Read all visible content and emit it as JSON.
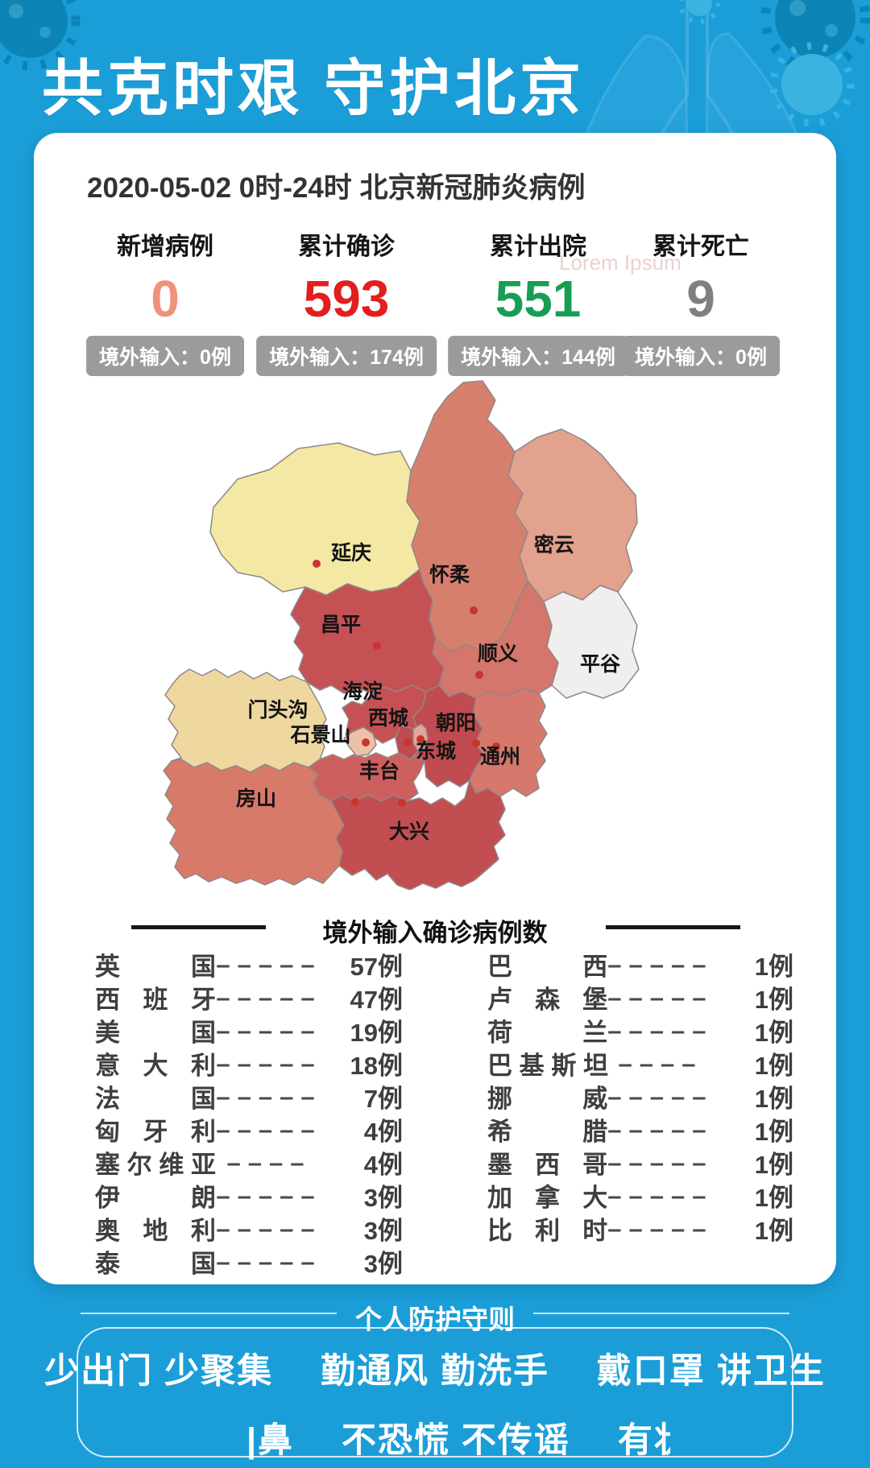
{
  "page": {
    "bg_color": "#1b9ed8",
    "accent_red": "#e31e1e",
    "accent_green": "#189e54"
  },
  "header": {
    "title": "共克时艰 守护北京"
  },
  "report": {
    "date_line": "2020-05-02  0时-24时  北京新冠肺炎病例",
    "watermark": "Lorem Ipsum",
    "stats": [
      {
        "label": "新增病例",
        "value": "0",
        "color": "#f0917c",
        "badge": "境外输入：0例"
      },
      {
        "label": "累计确诊",
        "value": "593",
        "color": "#e31e1e",
        "badge": "境外输入：174例"
      },
      {
        "label": "累计出院",
        "value": "551",
        "color": "#189e54",
        "badge": "境外输入：144例"
      },
      {
        "label": "累计死亡",
        "value": "9",
        "color": "#808080",
        "badge": "境外输入：0例"
      }
    ],
    "map": {
      "dot_color": "#c8342f",
      "border_color": "#8e8888",
      "districts": [
        {
          "id": "yanqing",
          "name": "延庆",
          "color": "#f3e9a4",
          "label": [
            261,
            230
          ],
          "dot": [
            218,
            235
          ]
        },
        {
          "id": "huairou",
          "name": "怀柔",
          "color": "#d77f6d",
          "label": [
            383,
            257
          ],
          "dot": [
            413,
            293
          ]
        },
        {
          "id": "miyun",
          "name": "密云",
          "color": "#e3a28d",
          "label": [
            513,
            220
          ],
          "dot": null
        },
        {
          "id": "pinggu",
          "name": "平谷",
          "color": "#f0efee",
          "label": [
            570,
            368
          ],
          "dot": null
        },
        {
          "id": "changping",
          "name": "昌平",
          "color": "#c65154",
          "label": [
            248,
            319
          ],
          "dot": [
            293,
            337
          ]
        },
        {
          "id": "shunyi",
          "name": "顺义",
          "color": "#d4766b",
          "label": [
            443,
            355
          ],
          "dot": [
            420,
            373
          ]
        },
        {
          "id": "mentougou",
          "name": "门头沟",
          "color": "#eed8a0",
          "label": [
            170,
            425
          ],
          "dot": null
        },
        {
          "id": "haidian",
          "name": "海淀",
          "color": "#c65154",
          "label": [
            275,
            402
          ],
          "dot": null
        },
        {
          "id": "shijingshan",
          "name": "石景山",
          "color": "#edc0a8",
          "label": [
            223,
            456
          ],
          "dot": [
            279,
            457
          ]
        },
        {
          "id": "xicheng",
          "name": "西城",
          "color": "#bf4a50",
          "label": [
            307,
            435
          ],
          "dot": [
            331,
            457
          ]
        },
        {
          "id": "dongcheng",
          "name": "东城",
          "color": "#e2a79a",
          "label": [
            366,
            476
          ],
          "dot": [
            347,
            453
          ]
        },
        {
          "id": "chaoyang",
          "name": "朝阳",
          "color": "#c04b50",
          "label": [
            391,
            441
          ],
          "dot": [
            416,
            458
          ]
        },
        {
          "id": "tongzhou",
          "name": "通州",
          "color": "#d6796c",
          "label": [
            446,
            483
          ],
          "dot": [
            441,
            462
          ]
        },
        {
          "id": "fengtai",
          "name": "丰台",
          "color": "#cd605f",
          "label": [
            296,
            501
          ],
          "dot": [
            266,
            531
          ]
        },
        {
          "id": "fangshan",
          "name": "房山",
          "color": "#d87a69",
          "label": [
            143,
            535
          ],
          "dot": null
        },
        {
          "id": "daxing",
          "name": "大兴",
          "color": "#c24e52",
          "label": [
            333,
            576
          ],
          "dot": [
            324,
            532
          ]
        }
      ]
    },
    "imported": {
      "title": "境外输入确诊病例数",
      "left": [
        {
          "name": "英　国",
          "dashes": "–––––",
          "count": "57例"
        },
        {
          "name": "西班牙",
          "dashes": "–––––",
          "count": "47例"
        },
        {
          "name": "美　国",
          "dashes": "–––––",
          "count": "19例"
        },
        {
          "name": "意大利",
          "dashes": "–––––",
          "count": "18例"
        },
        {
          "name": "法　国",
          "dashes": "–––––",
          "count": "7例"
        },
        {
          "name": "匈牙利",
          "dashes": "–––––",
          "count": "4例"
        },
        {
          "name": "塞尔维亚",
          "dashes": "––––",
          "count": "4例"
        },
        {
          "name": "伊　朗",
          "dashes": "–––––",
          "count": "3例"
        },
        {
          "name": "奥地利",
          "dashes": "–––––",
          "count": "3例"
        },
        {
          "name": "泰　国",
          "dashes": "–––––",
          "count": "3例"
        }
      ],
      "right": [
        {
          "name": "巴　西",
          "dashes": "–––––",
          "count": "1例"
        },
        {
          "name": "卢森堡",
          "dashes": "–––––",
          "count": "1例"
        },
        {
          "name": "荷　兰",
          "dashes": "–––––",
          "count": "1例"
        },
        {
          "name": "巴基斯坦",
          "dashes": "––––",
          "count": "1例"
        },
        {
          "name": "挪　威",
          "dashes": "–––––",
          "count": "1例"
        },
        {
          "name": "希　腊",
          "dashes": "–––––",
          "count": "1例"
        },
        {
          "name": "墨西哥",
          "dashes": "–––––",
          "count": "1例"
        },
        {
          "name": "加拿大",
          "dashes": "–––––",
          "count": "1例"
        },
        {
          "name": "比利时",
          "dashes": "–––––",
          "count": "1例"
        }
      ]
    }
  },
  "footer": {
    "title": "个人防护守则",
    "line1": "少出门 少聚集　 勤通风 勤洗手　 戴口罩 讲卫生",
    "line2_pre": "|鼻",
    "line2_mid": "不恐慌 不传谣",
    "line2_post": "有",
    "line2_partial": "状"
  }
}
